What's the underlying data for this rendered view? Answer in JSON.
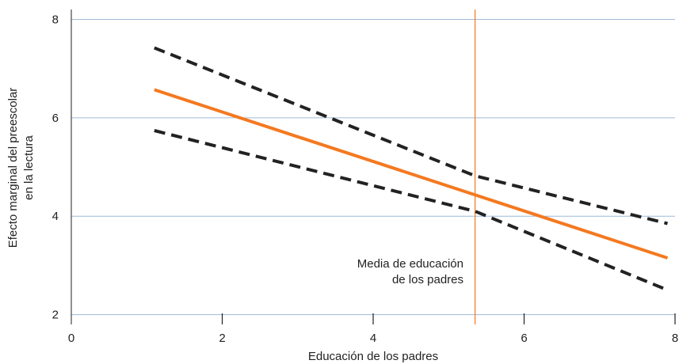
{
  "chart_data": {
    "type": "line",
    "title": "",
    "xlabel": "Educación de los padres",
    "ylabel_lines": [
      "Efecto marginal del preescolar",
      "en la lectura"
    ],
    "xlim": [
      0,
      8
    ],
    "ylim": [
      1.8,
      8.2
    ],
    "x_ticks": [
      0,
      2,
      4,
      6,
      8
    ],
    "y_ticks": [
      2,
      4,
      6,
      8
    ],
    "grid": "horizontal",
    "series": [
      {
        "style": "solid",
        "color": "#f47920",
        "points": [
          [
            1.1,
            6.57
          ],
          [
            7.9,
            3.15
          ]
        ]
      },
      {
        "style": "dashed",
        "color": "#222222",
        "points": [
          [
            1.1,
            7.42
          ],
          [
            5.35,
            4.82
          ],
          [
            7.9,
            3.85
          ]
        ]
      },
      {
        "style": "dashed",
        "color": "#222222",
        "points": [
          [
            1.1,
            5.74
          ],
          [
            5.35,
            4.1
          ],
          [
            7.9,
            2.5
          ]
        ]
      }
    ],
    "reference_line": {
      "x": 5.35,
      "color": "#f47920"
    },
    "annotation_lines": [
      "Media de educación",
      "de los padres"
    ],
    "colors": {
      "grid": "#9dbad6",
      "axis": "#222222",
      "accent": "#f47920"
    }
  }
}
